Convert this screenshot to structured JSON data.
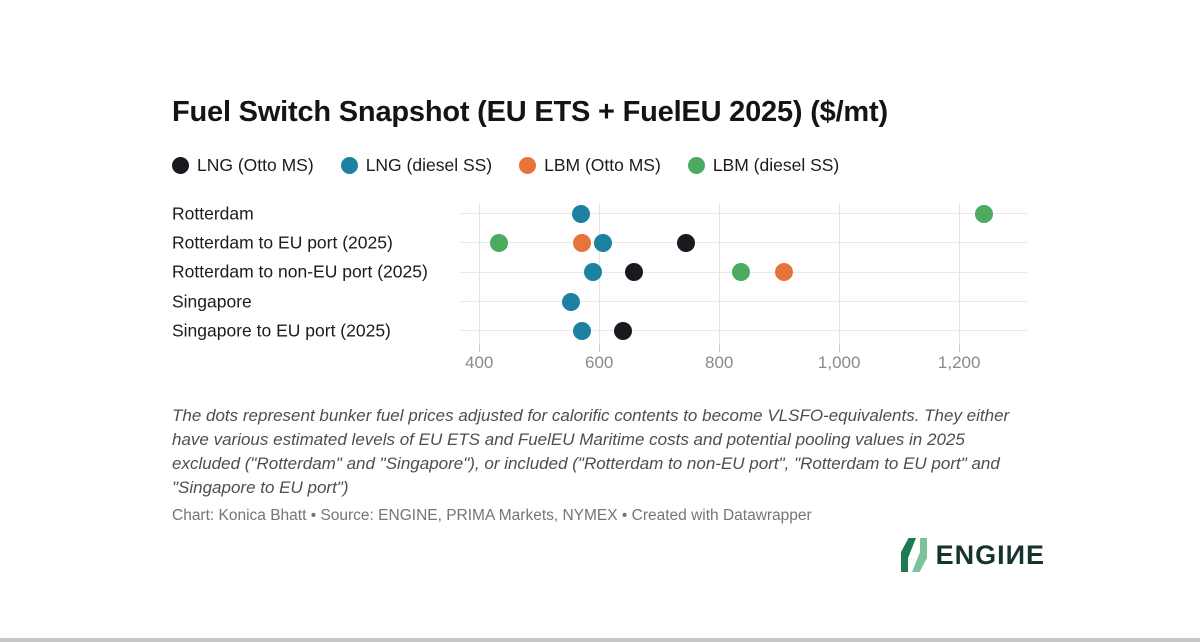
{
  "title": "Fuel Switch Snapshot (EU ETS + FuelEU 2025) ($/mt)",
  "chart_data": {
    "type": "scatter",
    "subtype": "horizontal-dot-plot",
    "title": "Fuel Switch Snapshot (EU ETS + FuelEU 2025) ($/mt)",
    "xlabel": "$/mt",
    "ylabel": "",
    "categories": [
      "Rotterdam",
      "Rotterdam to EU port (2025)",
      "Rotterdam to non-EU port (2025)",
      "Singapore",
      "Singapore to EU port (2025)"
    ],
    "series": [
      {
        "name": "LNG (Otto MS)",
        "color": "#19191f",
        "values": [
          null,
          744,
          658,
          null,
          639
        ]
      },
      {
        "name": "LNG (diesel SS)",
        "color": "#1d81a2",
        "values": [
          570,
          607,
          590,
          553,
          571
        ]
      },
      {
        "name": "LBM (Otto MS)",
        "color": "#e8743b",
        "values": [
          null,
          572,
          908,
          null,
          null
        ]
      },
      {
        "name": "LBM (diesel SS)",
        "color": "#4cab5e",
        "values": [
          1241,
          433,
          837,
          null,
          null
        ]
      }
    ],
    "x_ticks": [
      400,
      600,
      800,
      1000,
      1200
    ],
    "x_tick_labels": [
      "400",
      "600",
      "800",
      "1,000",
      "1,200"
    ],
    "xlim": [
      368,
      1313
    ],
    "grid": true,
    "legend_position": "top"
  },
  "notes": {
    "text": "The dots represent bunker fuel prices adjusted for calorific contents to become VLSFO-equivalents. They either have various estimated levels of EU ETS and FuelEU Maritime costs and potential pooling values in 2025 excluded (\"Rotterdam\" and \"Singapore\"), or included (\"Rotterdam to non-EU port\", \"Rotterdam to EU port\" and \"Singapore to EU port\")"
  },
  "credit": {
    "text": "Chart: Konica Bhatt • Source: ENGINE, PRIMA Markets, NYMEX • Created with Datawrapper"
  },
  "logo": {
    "text": "ENGIИE",
    "icon_dark_green": "#1e7a52",
    "icon_light_green": "#7ac39b",
    "text_color": "#17332d"
  }
}
